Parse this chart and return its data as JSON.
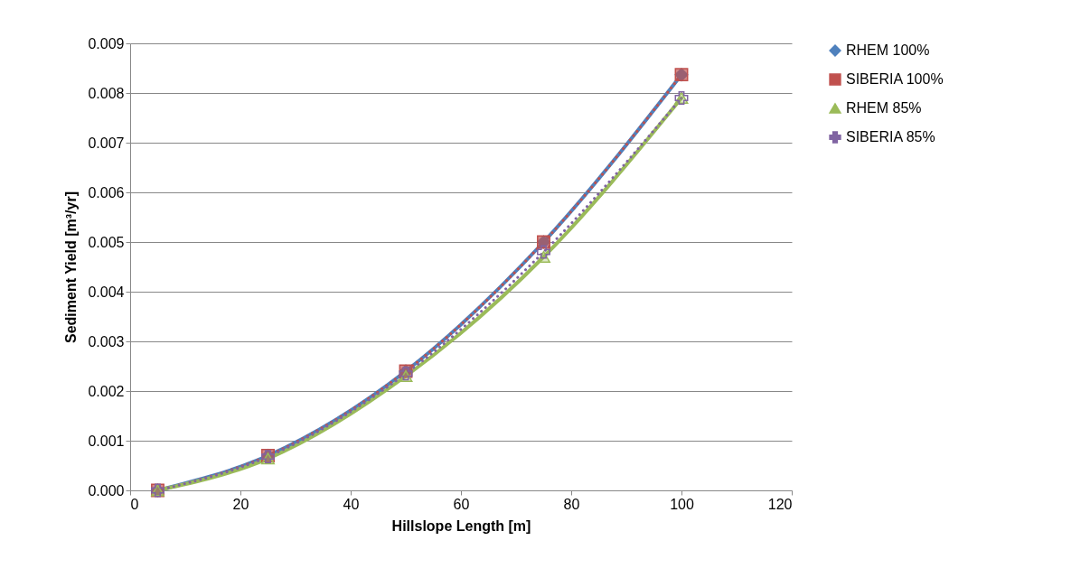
{
  "chart_data": {
    "type": "line",
    "xlabel": "Hillslope Length [m]",
    "ylabel": "Sediment Yield [m³/yr]",
    "x": [
      5,
      25,
      50,
      75,
      100
    ],
    "series": [
      {
        "name": "RHEM 100%",
        "color": "#4f81bd",
        "marker": "diamond",
        "line_style": "solid",
        "values": [
          0.0,
          0.0007,
          0.0024,
          0.005,
          0.00837
        ]
      },
      {
        "name": "SIBERIA 100%",
        "color": "#c0504d",
        "marker": "square",
        "line_style": "dotted",
        "values": [
          0.0,
          0.0007,
          0.0024,
          0.005,
          0.00837
        ]
      },
      {
        "name": "RHEM 85%",
        "color": "#9bbb59",
        "marker": "triangle",
        "line_style": "solid",
        "values": [
          0.0,
          0.00064,
          0.0023,
          0.0047,
          0.0079
        ]
      },
      {
        "name": "SIBERIA 85%",
        "color": "#8064a2",
        "marker": "cross",
        "line_style": "dotted",
        "values": [
          0.0,
          0.00068,
          0.00235,
          0.0048,
          0.0079
        ]
      }
    ],
    "xlim": [
      0,
      120
    ],
    "xticks": [
      0,
      20,
      40,
      60,
      80,
      100,
      120
    ],
    "ylim": [
      0,
      0.009
    ],
    "yticks": [
      {
        "value": 0,
        "label": "0.000"
      },
      {
        "value": 0.001,
        "label": "0.001"
      },
      {
        "value": 0.002,
        "label": "0.002"
      },
      {
        "value": 0.003,
        "label": "0.003"
      },
      {
        "value": 0.004,
        "label": "0.004"
      },
      {
        "value": 0.005,
        "label": "0.005"
      },
      {
        "value": 0.006,
        "label": "0.006"
      },
      {
        "value": 0.007,
        "label": "0.007"
      },
      {
        "value": 0.008,
        "label": "0.008"
      },
      {
        "value": 0.009,
        "label": "0.009"
      }
    ],
    "grid": "y",
    "legend": "right"
  }
}
